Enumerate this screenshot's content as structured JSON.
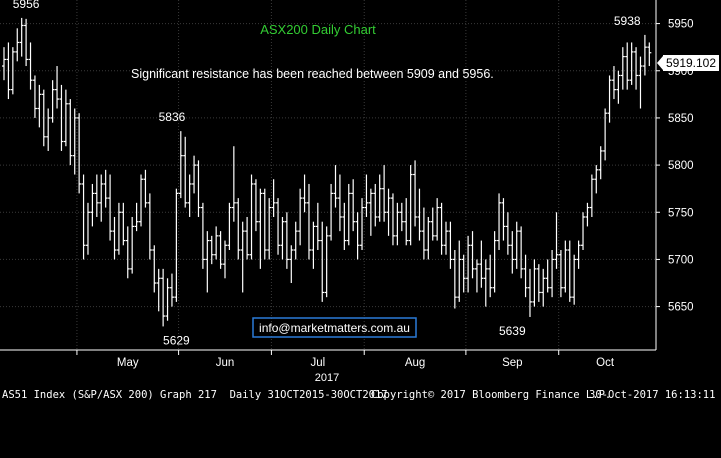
{
  "chart_data": {
    "type": "ohlc",
    "title": "ASX200 Daily Chart",
    "annotation": "Significant resistance has been reached between 5909 and 5956.",
    "email": "info@marketmatters.com.au",
    "last_price_label": "5919.102",
    "year_label": "2017",
    "ylim": [
      5604,
      5975
    ],
    "y_ticks": [
      5650,
      5700,
      5750,
      5800,
      5850,
      5900,
      5950
    ],
    "month_labels": [
      "May",
      "Jun",
      "Jul",
      "Aug",
      "Sep",
      "Oct"
    ],
    "price_labels": [
      {
        "text": "5956",
        "value": 5956,
        "day": 5
      },
      {
        "text": "5836",
        "value": 5836,
        "day": 38
      },
      {
        "text": "5629",
        "value": 5629,
        "day": 39
      },
      {
        "text": "5639",
        "value": 5639,
        "day": 115
      },
      {
        "text": "5938",
        "value": 5938,
        "day": 141
      }
    ],
    "bars": [
      {
        "day": "2017-04-03",
        "o": 5905,
        "h": 5925,
        "l": 5890,
        "c": 5912
      },
      {
        "day": "2017-04-04",
        "o": 5912,
        "h": 5930,
        "l": 5870,
        "c": 5880
      },
      {
        "day": "2017-04-05",
        "o": 5880,
        "h": 5925,
        "l": 5875,
        "c": 5920
      },
      {
        "day": "2017-04-06",
        "o": 5920,
        "h": 5945,
        "l": 5910,
        "c": 5930
      },
      {
        "day": "2017-04-07",
        "o": 5930,
        "h": 5956,
        "l": 5915,
        "c": 5948
      },
      {
        "day": "2017-04-10",
        "o": 5948,
        "h": 5955,
        "l": 5905,
        "c": 5912
      },
      {
        "day": "2017-04-11",
        "o": 5912,
        "h": 5930,
        "l": 5880,
        "c": 5890
      },
      {
        "day": "2017-04-12",
        "o": 5890,
        "h": 5895,
        "l": 5850,
        "c": 5860
      },
      {
        "day": "2017-04-13",
        "o": 5860,
        "h": 5885,
        "l": 5840,
        "c": 5875
      },
      {
        "day": "2017-04-18",
        "o": 5875,
        "h": 5880,
        "l": 5820,
        "c": 5830
      },
      {
        "day": "2017-04-19",
        "o": 5830,
        "h": 5860,
        "l": 5815,
        "c": 5850
      },
      {
        "day": "2017-04-20",
        "o": 5850,
        "h": 5890,
        "l": 5845,
        "c": 5880
      },
      {
        "day": "2017-04-21",
        "o": 5880,
        "h": 5905,
        "l": 5860,
        "c": 5870
      },
      {
        "day": "2017-04-24",
        "o": 5870,
        "h": 5885,
        "l": 5815,
        "c": 5825
      },
      {
        "day": "2017-04-26",
        "o": 5825,
        "h": 5880,
        "l": 5820,
        "c": 5865
      },
      {
        "day": "2017-04-27",
        "o": 5865,
        "h": 5870,
        "l": 5800,
        "c": 5810
      },
      {
        "day": "2017-04-28",
        "o": 5810,
        "h": 5860,
        "l": 5790,
        "c": 5850
      },
      {
        "day": "2017-05-01",
        "o": 5850,
        "h": 5855,
        "l": 5770,
        "c": 5780
      },
      {
        "day": "2017-05-02",
        "o": 5780,
        "h": 5790,
        "l": 5700,
        "c": 5715
      },
      {
        "day": "2017-05-03",
        "o": 5715,
        "h": 5760,
        "l": 5705,
        "c": 5750
      },
      {
        "day": "2017-05-04",
        "o": 5750,
        "h": 5780,
        "l": 5735,
        "c": 5770
      },
      {
        "day": "2017-05-05",
        "o": 5770,
        "h": 5790,
        "l": 5745,
        "c": 5760
      },
      {
        "day": "2017-05-08",
        "o": 5760,
        "h": 5790,
        "l": 5740,
        "c": 5780
      },
      {
        "day": "2017-05-09",
        "o": 5780,
        "h": 5795,
        "l": 5755,
        "c": 5765
      },
      {
        "day": "2017-05-10",
        "o": 5765,
        "h": 5790,
        "l": 5720,
        "c": 5730
      },
      {
        "day": "2017-05-11",
        "o": 5730,
        "h": 5745,
        "l": 5700,
        "c": 5710
      },
      {
        "day": "2017-05-12",
        "o": 5710,
        "h": 5760,
        "l": 5705,
        "c": 5750
      },
      {
        "day": "2017-05-15",
        "o": 5750,
        "h": 5760,
        "l": 5715,
        "c": 5720
      },
      {
        "day": "2017-05-16",
        "o": 5720,
        "h": 5735,
        "l": 5680,
        "c": 5690
      },
      {
        "day": "2017-05-17",
        "o": 5690,
        "h": 5745,
        "l": 5685,
        "c": 5735
      },
      {
        "day": "2017-05-18",
        "o": 5735,
        "h": 5760,
        "l": 5730,
        "c": 5740
      },
      {
        "day": "2017-05-19",
        "o": 5740,
        "h": 5790,
        "l": 5735,
        "c": 5785
      },
      {
        "day": "2017-05-22",
        "o": 5785,
        "h": 5795,
        "l": 5755,
        "c": 5760
      },
      {
        "day": "2017-05-23",
        "o": 5760,
        "h": 5770,
        "l": 5700,
        "c": 5710
      },
      {
        "day": "2017-05-24",
        "o": 5710,
        "h": 5715,
        "l": 5665,
        "c": 5675
      },
      {
        "day": "2017-05-25",
        "o": 5675,
        "h": 5690,
        "l": 5645,
        "c": 5680
      },
      {
        "day": "2017-05-26",
        "o": 5680,
        "h": 5690,
        "l": 5629,
        "c": 5640
      },
      {
        "day": "2017-05-29",
        "o": 5640,
        "h": 5680,
        "l": 5635,
        "c": 5670
      },
      {
        "day": "2017-05-30",
        "o": 5670,
        "h": 5685,
        "l": 5650,
        "c": 5660
      },
      {
        "day": "2017-05-31",
        "o": 5660,
        "h": 5775,
        "l": 5655,
        "c": 5770
      },
      {
        "day": "2017-06-01",
        "o": 5770,
        "h": 5836,
        "l": 5765,
        "c": 5810
      },
      {
        "day": "2017-06-02",
        "o": 5810,
        "h": 5830,
        "l": 5755,
        "c": 5760
      },
      {
        "day": "2017-06-05",
        "o": 5760,
        "h": 5790,
        "l": 5745,
        "c": 5780
      },
      {
        "day": "2017-06-06",
        "o": 5780,
        "h": 5810,
        "l": 5770,
        "c": 5800
      },
      {
        "day": "2017-06-07",
        "o": 5800,
        "h": 5805,
        "l": 5745,
        "c": 5755
      },
      {
        "day": "2017-06-08",
        "o": 5755,
        "h": 5760,
        "l": 5690,
        "c": 5700
      },
      {
        "day": "2017-06-09",
        "o": 5700,
        "h": 5730,
        "l": 5665,
        "c": 5720
      },
      {
        "day": "2017-06-13",
        "o": 5720,
        "h": 5725,
        "l": 5695,
        "c": 5705
      },
      {
        "day": "2017-06-14",
        "o": 5705,
        "h": 5735,
        "l": 5700,
        "c": 5725
      },
      {
        "day": "2017-06-15",
        "o": 5725,
        "h": 5730,
        "l": 5690,
        "c": 5695
      },
      {
        "day": "2017-06-16",
        "o": 5695,
        "h": 5720,
        "l": 5680,
        "c": 5715
      },
      {
        "day": "2017-06-19",
        "o": 5715,
        "h": 5760,
        "l": 5710,
        "c": 5755
      },
      {
        "day": "2017-06-20",
        "o": 5755,
        "h": 5820,
        "l": 5740,
        "c": 5760
      },
      {
        "day": "2017-06-21",
        "o": 5760,
        "h": 5765,
        "l": 5700,
        "c": 5710
      },
      {
        "day": "2017-06-22",
        "o": 5710,
        "h": 5740,
        "l": 5665,
        "c": 5730
      },
      {
        "day": "2017-06-23",
        "o": 5730,
        "h": 5745,
        "l": 5700,
        "c": 5705
      },
      {
        "day": "2017-06-26",
        "o": 5705,
        "h": 5790,
        "l": 5700,
        "c": 5780
      },
      {
        "day": "2017-06-27",
        "o": 5780,
        "h": 5785,
        "l": 5730,
        "c": 5740
      },
      {
        "day": "2017-06-28",
        "o": 5740,
        "h": 5775,
        "l": 5690,
        "c": 5770
      },
      {
        "day": "2017-06-29",
        "o": 5770,
        "h": 5775,
        "l": 5700,
        "c": 5710
      },
      {
        "day": "2017-06-30",
        "o": 5710,
        "h": 5765,
        "l": 5700,
        "c": 5755
      },
      {
        "day": "2017-07-03",
        "o": 5755,
        "h": 5785,
        "l": 5745,
        "c": 5760
      },
      {
        "day": "2017-07-04",
        "o": 5760,
        "h": 5765,
        "l": 5705,
        "c": 5715
      },
      {
        "day": "2017-07-05",
        "o": 5715,
        "h": 5745,
        "l": 5700,
        "c": 5740
      },
      {
        "day": "2017-07-06",
        "o": 5740,
        "h": 5750,
        "l": 5690,
        "c": 5700
      },
      {
        "day": "2017-07-07",
        "o": 5700,
        "h": 5715,
        "l": 5675,
        "c": 5710
      },
      {
        "day": "2017-07-10",
        "o": 5710,
        "h": 5740,
        "l": 5700,
        "c": 5730
      },
      {
        "day": "2017-07-11",
        "o": 5730,
        "h": 5775,
        "l": 5715,
        "c": 5765
      },
      {
        "day": "2017-07-12",
        "o": 5765,
        "h": 5790,
        "l": 5750,
        "c": 5760
      },
      {
        "day": "2017-07-13",
        "o": 5760,
        "h": 5780,
        "l": 5700,
        "c": 5710
      },
      {
        "day": "2017-07-14",
        "o": 5710,
        "h": 5740,
        "l": 5690,
        "c": 5735
      },
      {
        "day": "2017-07-17",
        "o": 5735,
        "h": 5760,
        "l": 5710,
        "c": 5720
      },
      {
        "day": "2017-07-18",
        "o": 5720,
        "h": 5740,
        "l": 5655,
        "c": 5665
      },
      {
        "day": "2017-07-19",
        "o": 5665,
        "h": 5735,
        "l": 5660,
        "c": 5725
      },
      {
        "day": "2017-07-20",
        "o": 5725,
        "h": 5780,
        "l": 5720,
        "c": 5770
      },
      {
        "day": "2017-07-21",
        "o": 5770,
        "h": 5800,
        "l": 5755,
        "c": 5765
      },
      {
        "day": "2017-07-24",
        "o": 5765,
        "h": 5790,
        "l": 5730,
        "c": 5745
      },
      {
        "day": "2017-07-25",
        "o": 5745,
        "h": 5760,
        "l": 5710,
        "c": 5720
      },
      {
        "day": "2017-07-26",
        "o": 5720,
        "h": 5780,
        "l": 5715,
        "c": 5770
      },
      {
        "day": "2017-07-27",
        "o": 5770,
        "h": 5785,
        "l": 5730,
        "c": 5740
      },
      {
        "day": "2017-07-28",
        "o": 5740,
        "h": 5750,
        "l": 5700,
        "c": 5715
      },
      {
        "day": "2017-07-31",
        "o": 5715,
        "h": 5765,
        "l": 5710,
        "c": 5755
      },
      {
        "day": "2017-08-01",
        "o": 5755,
        "h": 5790,
        "l": 5745,
        "c": 5760
      },
      {
        "day": "2017-08-02",
        "o": 5760,
        "h": 5775,
        "l": 5725,
        "c": 5770
      },
      {
        "day": "2017-08-03",
        "o": 5770,
        "h": 5780,
        "l": 5735,
        "c": 5745
      },
      {
        "day": "2017-08-04",
        "o": 5745,
        "h": 5790,
        "l": 5740,
        "c": 5775
      },
      {
        "day": "2017-08-07",
        "o": 5775,
        "h": 5800,
        "l": 5740,
        "c": 5750
      },
      {
        "day": "2017-08-08",
        "o": 5750,
        "h": 5775,
        "l": 5725,
        "c": 5765
      },
      {
        "day": "2017-08-09",
        "o": 5765,
        "h": 5770,
        "l": 5715,
        "c": 5725
      },
      {
        "day": "2017-08-10",
        "o": 5725,
        "h": 5760,
        "l": 5715,
        "c": 5750
      },
      {
        "day": "2017-08-11",
        "o": 5750,
        "h": 5760,
        "l": 5730,
        "c": 5740
      },
      {
        "day": "2017-08-14",
        "o": 5740,
        "h": 5765,
        "l": 5715,
        "c": 5720
      },
      {
        "day": "2017-08-15",
        "o": 5720,
        "h": 5800,
        "l": 5715,
        "c": 5790
      },
      {
        "day": "2017-08-16",
        "o": 5790,
        "h": 5805,
        "l": 5735,
        "c": 5745
      },
      {
        "day": "2017-08-17",
        "o": 5745,
        "h": 5775,
        "l": 5720,
        "c": 5730
      },
      {
        "day": "2017-08-18",
        "o": 5730,
        "h": 5755,
        "l": 5700,
        "c": 5710
      },
      {
        "day": "2017-08-21",
        "o": 5710,
        "h": 5745,
        "l": 5700,
        "c": 5740
      },
      {
        "day": "2017-08-22",
        "o": 5740,
        "h": 5755,
        "l": 5720,
        "c": 5725
      },
      {
        "day": "2017-08-23",
        "o": 5725,
        "h": 5765,
        "l": 5720,
        "c": 5755
      },
      {
        "day": "2017-08-24",
        "o": 5755,
        "h": 5760,
        "l": 5705,
        "c": 5715
      },
      {
        "day": "2017-08-25",
        "o": 5715,
        "h": 5740,
        "l": 5705,
        "c": 5730
      },
      {
        "day": "2017-08-28",
        "o": 5730,
        "h": 5740,
        "l": 5690,
        "c": 5700
      },
      {
        "day": "2017-08-29",
        "o": 5700,
        "h": 5710,
        "l": 5648,
        "c": 5660
      },
      {
        "day": "2017-08-30",
        "o": 5660,
        "h": 5720,
        "l": 5655,
        "c": 5700
      },
      {
        "day": "2017-08-31",
        "o": 5700,
        "h": 5705,
        "l": 5665,
        "c": 5680
      },
      {
        "day": "2017-09-01",
        "o": 5680,
        "h": 5725,
        "l": 5665,
        "c": 5715
      },
      {
        "day": "2017-09-04",
        "o": 5715,
        "h": 5730,
        "l": 5680,
        "c": 5690
      },
      {
        "day": "2017-09-05",
        "o": 5690,
        "h": 5700,
        "l": 5665,
        "c": 5695
      },
      {
        "day": "2017-09-06",
        "o": 5695,
        "h": 5720,
        "l": 5670,
        "c": 5680
      },
      {
        "day": "2017-09-07",
        "o": 5680,
        "h": 5700,
        "l": 5650,
        "c": 5690
      },
      {
        "day": "2017-09-08",
        "o": 5690,
        "h": 5705,
        "l": 5660,
        "c": 5670
      },
      {
        "day": "2017-09-11",
        "o": 5670,
        "h": 5730,
        "l": 5665,
        "c": 5720
      },
      {
        "day": "2017-09-12",
        "o": 5720,
        "h": 5770,
        "l": 5710,
        "c": 5760
      },
      {
        "day": "2017-09-13",
        "o": 5760,
        "h": 5765,
        "l": 5720,
        "c": 5735
      },
      {
        "day": "2017-09-14",
        "o": 5735,
        "h": 5750,
        "l": 5705,
        "c": 5715
      },
      {
        "day": "2017-09-15",
        "o": 5715,
        "h": 5730,
        "l": 5685,
        "c": 5700
      },
      {
        "day": "2017-09-18",
        "o": 5700,
        "h": 5740,
        "l": 5690,
        "c": 5730
      },
      {
        "day": "2017-09-19",
        "o": 5730,
        "h": 5735,
        "l": 5680,
        "c": 5690
      },
      {
        "day": "2017-09-20",
        "o": 5690,
        "h": 5705,
        "l": 5660,
        "c": 5670
      },
      {
        "day": "2017-09-21",
        "o": 5670,
        "h": 5690,
        "l": 5639,
        "c": 5655
      },
      {
        "day": "2017-09-22",
        "o": 5655,
        "h": 5700,
        "l": 5650,
        "c": 5690
      },
      {
        "day": "2017-09-25",
        "o": 5690,
        "h": 5695,
        "l": 5655,
        "c": 5665
      },
      {
        "day": "2017-09-26",
        "o": 5665,
        "h": 5690,
        "l": 5650,
        "c": 5680
      },
      {
        "day": "2017-09-27",
        "o": 5680,
        "h": 5700,
        "l": 5665,
        "c": 5670
      },
      {
        "day": "2017-09-28",
        "o": 5670,
        "h": 5710,
        "l": 5660,
        "c": 5700
      },
      {
        "day": "2017-09-29",
        "o": 5700,
        "h": 5750,
        "l": 5690,
        "c": 5705
      },
      {
        "day": "2017-10-02",
        "o": 5705,
        "h": 5710,
        "l": 5660,
        "c": 5670
      },
      {
        "day": "2017-10-03",
        "o": 5670,
        "h": 5720,
        "l": 5665,
        "c": 5710
      },
      {
        "day": "2017-10-04",
        "o": 5710,
        "h": 5720,
        "l": 5655,
        "c": 5660
      },
      {
        "day": "2017-10-05",
        "o": 5660,
        "h": 5705,
        "l": 5652,
        "c": 5700
      },
      {
        "day": "2017-10-06",
        "o": 5700,
        "h": 5720,
        "l": 5690,
        "c": 5715
      },
      {
        "day": "2017-10-09",
        "o": 5715,
        "h": 5750,
        "l": 5710,
        "c": 5745
      },
      {
        "day": "2017-10-10",
        "o": 5745,
        "h": 5760,
        "l": 5735,
        "c": 5755
      },
      {
        "day": "2017-10-11",
        "o": 5755,
        "h": 5790,
        "l": 5745,
        "c": 5785
      },
      {
        "day": "2017-10-12",
        "o": 5785,
        "h": 5800,
        "l": 5770,
        "c": 5795
      },
      {
        "day": "2017-10-13",
        "o": 5795,
        "h": 5820,
        "l": 5785,
        "c": 5815
      },
      {
        "day": "2017-10-16",
        "o": 5815,
        "h": 5860,
        "l": 5805,
        "c": 5855
      },
      {
        "day": "2017-10-17",
        "o": 5855,
        "h": 5895,
        "l": 5845,
        "c": 5890
      },
      {
        "day": "2017-10-18",
        "o": 5890,
        "h": 5905,
        "l": 5870,
        "c": 5880
      },
      {
        "day": "2017-10-19",
        "o": 5880,
        "h": 5900,
        "l": 5865,
        "c": 5895
      },
      {
        "day": "2017-10-20",
        "o": 5895,
        "h": 5925,
        "l": 5880,
        "c": 5915
      },
      {
        "day": "2017-10-23",
        "o": 5915,
        "h": 5930,
        "l": 5880,
        "c": 5890
      },
      {
        "day": "2017-10-24",
        "o": 5890,
        "h": 5930,
        "l": 5885,
        "c": 5920
      },
      {
        "day": "2017-10-25",
        "o": 5920,
        "h": 5925,
        "l": 5880,
        "c": 5895
      },
      {
        "day": "2017-10-26",
        "o": 5895,
        "h": 5915,
        "l": 5860,
        "c": 5905
      },
      {
        "day": "2017-10-27",
        "o": 5905,
        "h": 5938,
        "l": 5895,
        "c": 5925
      },
      {
        "day": "2017-10-30",
        "o": 5925,
        "h": 5930,
        "l": 5905,
        "c": 5919.102
      }
    ]
  },
  "footer": {
    "left": "AS51 Index (S&P/ASX 200) Graph 217  Daily 31OCT2015-30OCT2017",
    "center": "Copyright© 2017 Bloomberg Finance L.P.",
    "right": "30-Oct-2017 16:13:11"
  },
  "colors": {
    "background": "#000000",
    "bars": "#ffffff",
    "grid": "#3a3a3a",
    "title": "#33cc33",
    "email_border": "#2a7bd8",
    "last_price_box": "#ffffff"
  }
}
